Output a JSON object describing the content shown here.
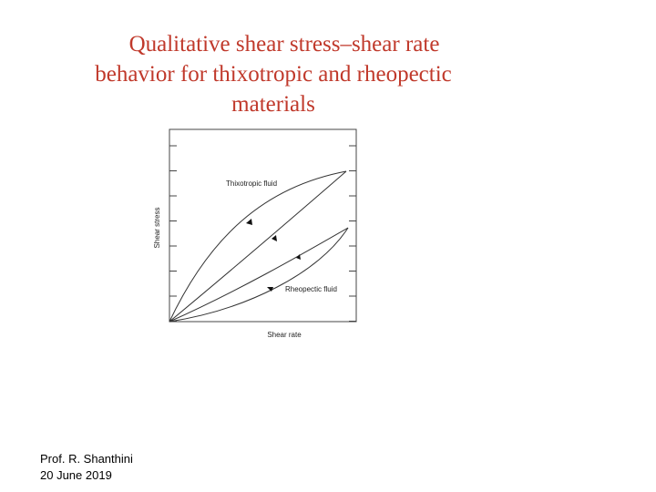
{
  "header": {
    "title_lines": [
      "Qualitative shear stress–shear rate",
      "behavior for thixotropic and rheopectic",
      "materials"
    ]
  },
  "diagram": {
    "y_axis_label": "Shear stress",
    "x_axis_label": "Shear rate",
    "curves": [
      {
        "label": "Thixotropic fluid"
      },
      {
        "label": "Rheopectic fluid"
      }
    ]
  },
  "footer": {
    "author": "Prof. R. Shanthini",
    "date": "20 June 2019"
  }
}
